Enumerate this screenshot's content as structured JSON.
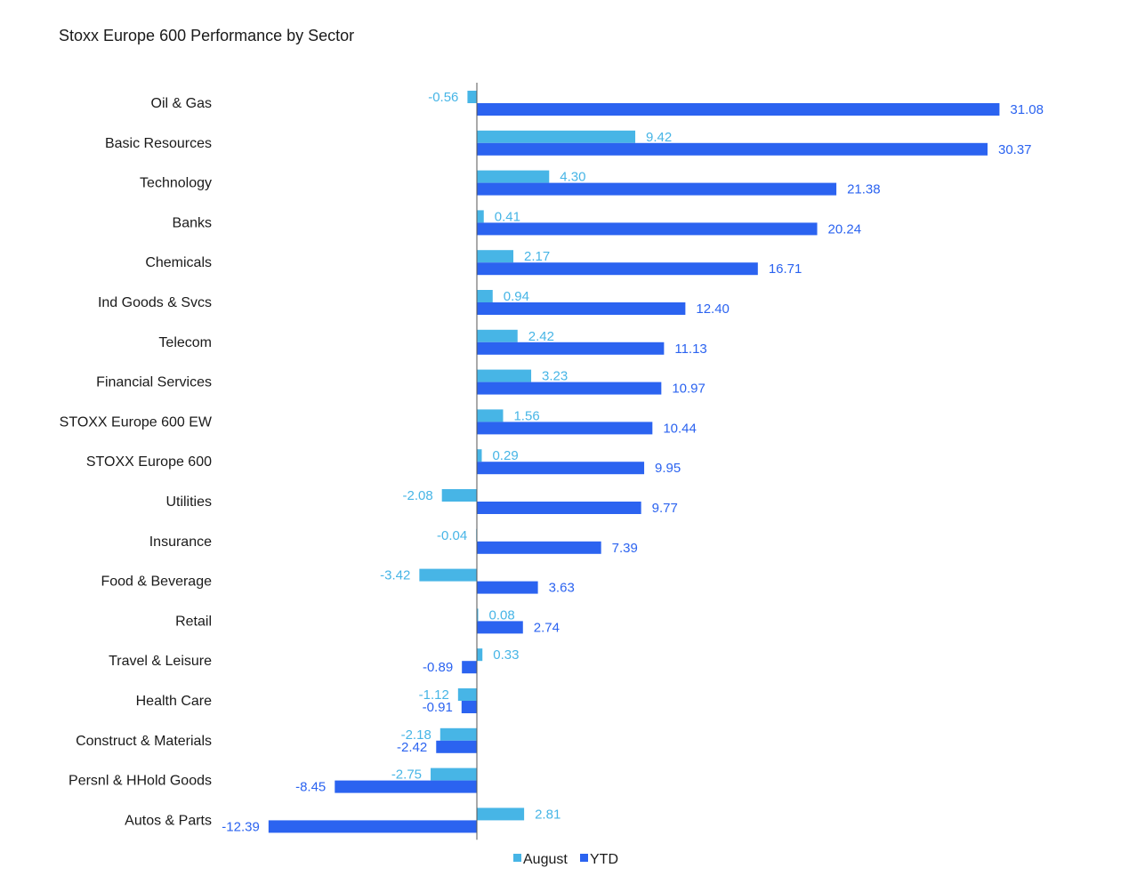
{
  "chart_data": {
    "type": "bar",
    "orientation": "horizontal",
    "title": "Stoxx Europe 600 Performance by Sector",
    "categories": [
      "Oil & Gas",
      "Basic Resources",
      "Technology",
      "Banks",
      "Chemicals",
      "Ind Goods & Svcs",
      "Telecom",
      "Financial Services",
      "STOXX Europe 600 EW",
      "STOXX Europe 600",
      "Utilities",
      "Insurance",
      "Food & Beverage",
      "Retail",
      "Travel & Leisure",
      "Health Care",
      "Construct & Materials",
      "Persnl & HHold Goods",
      "Autos & Parts"
    ],
    "category_labels": [
      "Oil & Gas",
      "Basic Resources",
      "Technology",
      "Banks",
      "Chemicals",
      "Ind Goods & Svcs",
      "Telecom",
      "Financial Services",
      "STOXX Europe 600 EW",
      "STOXX Europe 600",
      "Utilities",
      "Insurance",
      "Food & Beverage",
      "Retail",
      "Travel & Leisure",
      "Health Care",
      "Construct & Materials",
      "Persnl & HHold Goods",
      "Autos & Parts"
    ],
    "series": [
      {
        "name": "August",
        "color": "#47b5e6",
        "values": [
          -0.56,
          9.42,
          4.3,
          0.41,
          2.17,
          0.94,
          2.42,
          3.23,
          1.56,
          0.29,
          -2.08,
          -0.04,
          -3.42,
          0.08,
          0.33,
          -1.12,
          -2.18,
          -2.75,
          2.81
        ],
        "labels": [
          "-0.56",
          "9.42",
          "4.30",
          "0.41",
          "2.17",
          "0.94",
          "2.42",
          "3.23",
          "1.56",
          "0.29",
          "-2.08",
          "-0.04",
          "-3.42",
          "0.08",
          "0.33",
          "-1.12",
          "-2.18",
          "-2.75",
          "2.81"
        ]
      },
      {
        "name": "YTD",
        "color": "#2b63f0",
        "values": [
          31.08,
          30.37,
          21.38,
          20.24,
          16.71,
          12.4,
          11.13,
          10.97,
          10.44,
          9.95,
          9.77,
          7.39,
          3.63,
          2.74,
          -0.89,
          -0.91,
          -2.42,
          -8.45,
          -12.39
        ],
        "labels": [
          "31.08",
          "30.37",
          "21.38",
          "20.24",
          "16.71",
          "12.40",
          "11.13",
          "10.97",
          "10.44",
          "9.95",
          "9.77",
          "7.39",
          "3.63",
          "2.74",
          "-0.89",
          "-0.91",
          "-2.42",
          "-8.45",
          "-12.39"
        ]
      }
    ],
    "xlim": [
      -12.4,
      31.1
    ],
    "grid": false,
    "legend_position": "bottom"
  }
}
